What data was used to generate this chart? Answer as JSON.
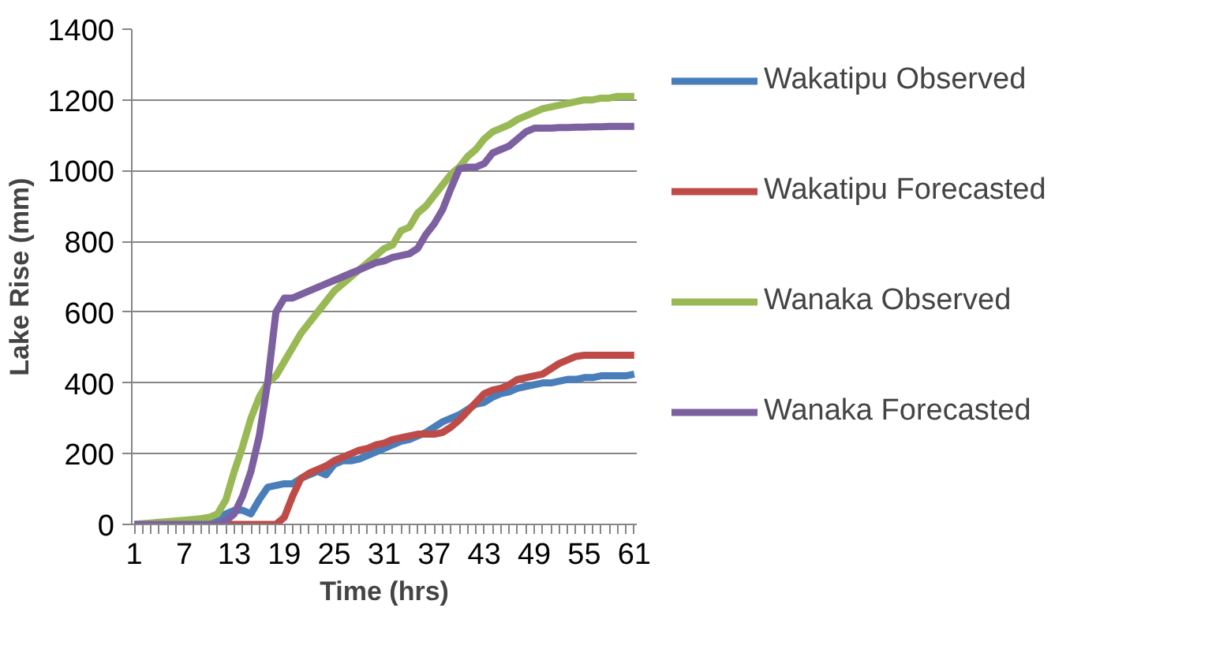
{
  "chart_data": {
    "type": "line",
    "xlabel": "Time (hrs)",
    "ylabel": "Lake Rise (mm)",
    "categories": [
      "1",
      null,
      null,
      null,
      null,
      null,
      "7",
      null,
      null,
      null,
      null,
      null,
      "13",
      null,
      null,
      null,
      null,
      null,
      "19",
      null,
      null,
      null,
      null,
      null,
      "25",
      null,
      null,
      null,
      null,
      null,
      "31",
      null,
      null,
      null,
      null,
      null,
      "37",
      null,
      null,
      null,
      null,
      null,
      "43",
      null,
      null,
      null,
      null,
      null,
      "49",
      null,
      null,
      null,
      null,
      null,
      "55",
      null,
      null,
      null,
      null,
      null,
      "61"
    ],
    "ylim": [
      0,
      1400
    ],
    "yticks": [
      0,
      200,
      400,
      600,
      800,
      1000,
      1200,
      1400
    ],
    "grid": "y",
    "legend": "right",
    "marker": "none",
    "line_style": "solid",
    "series": [
      {
        "name": "Wakatipu Observed",
        "color": "#4a7ebb",
        "values": [
          null,
          null,
          null,
          null,
          null,
          null,
          null,
          null,
          0,
          0,
          10,
          30,
          40,
          40,
          30,
          70,
          105,
          110,
          115,
          115,
          130,
          140,
          150,
          140,
          170,
          180,
          180,
          185,
          195,
          205,
          215,
          225,
          235,
          240,
          250,
          260,
          275,
          290,
          300,
          310,
          325,
          340,
          345,
          360,
          370,
          375,
          385,
          390,
          395,
          400,
          400,
          405,
          410,
          410,
          415,
          415,
          420,
          420,
          420,
          420,
          425
        ]
      },
      {
        "name": "Wakatipu Forecasted",
        "color": "#be4b48",
        "values": [
          null,
          null,
          null,
          null,
          null,
          null,
          null,
          null,
          null,
          null,
          0,
          0,
          0,
          0,
          0,
          0,
          0,
          0,
          20,
          80,
          130,
          145,
          155,
          165,
          180,
          190,
          200,
          210,
          215,
          225,
          230,
          240,
          245,
          250,
          255,
          255,
          255,
          260,
          275,
          295,
          320,
          345,
          370,
          380,
          385,
          395,
          410,
          415,
          420,
          425,
          440,
          455,
          465,
          475,
          478,
          478,
          478,
          478,
          478,
          478,
          478
        ]
      },
      {
        "name": "Wanaka Observed",
        "color": "#98b954",
        "values": [
          0,
          2,
          4,
          6,
          8,
          10,
          12,
          14,
          16,
          20,
          30,
          70,
          150,
          220,
          300,
          360,
          400,
          420,
          460,
          500,
          540,
          570,
          600,
          630,
          660,
          680,
          700,
          720,
          740,
          760,
          780,
          790,
          830,
          840,
          880,
          900,
          930,
          960,
          990,
          1010,
          1040,
          1060,
          1090,
          1110,
          1120,
          1130,
          1145,
          1155,
          1165,
          1175,
          1180,
          1185,
          1190,
          1195,
          1200,
          1200,
          1205,
          1205,
          1210,
          1210,
          1210
        ]
      },
      {
        "name": "Wanaka Forecasted",
        "color": "#7d60a0",
        "values": [
          0,
          0,
          0,
          0,
          0,
          0,
          0,
          0,
          0,
          0,
          0,
          10,
          30,
          80,
          150,
          250,
          400,
          600,
          640,
          640,
          650,
          660,
          670,
          680,
          690,
          700,
          710,
          720,
          730,
          740,
          745,
          755,
          760,
          765,
          780,
          820,
          850,
          890,
          950,
          1005,
          1010,
          1010,
          1020,
          1050,
          1060,
          1070,
          1090,
          1110,
          1120,
          1120,
          1120,
          1122,
          1122,
          1123,
          1123,
          1124,
          1124,
          1125,
          1125,
          1125,
          1125
        ]
      }
    ]
  }
}
